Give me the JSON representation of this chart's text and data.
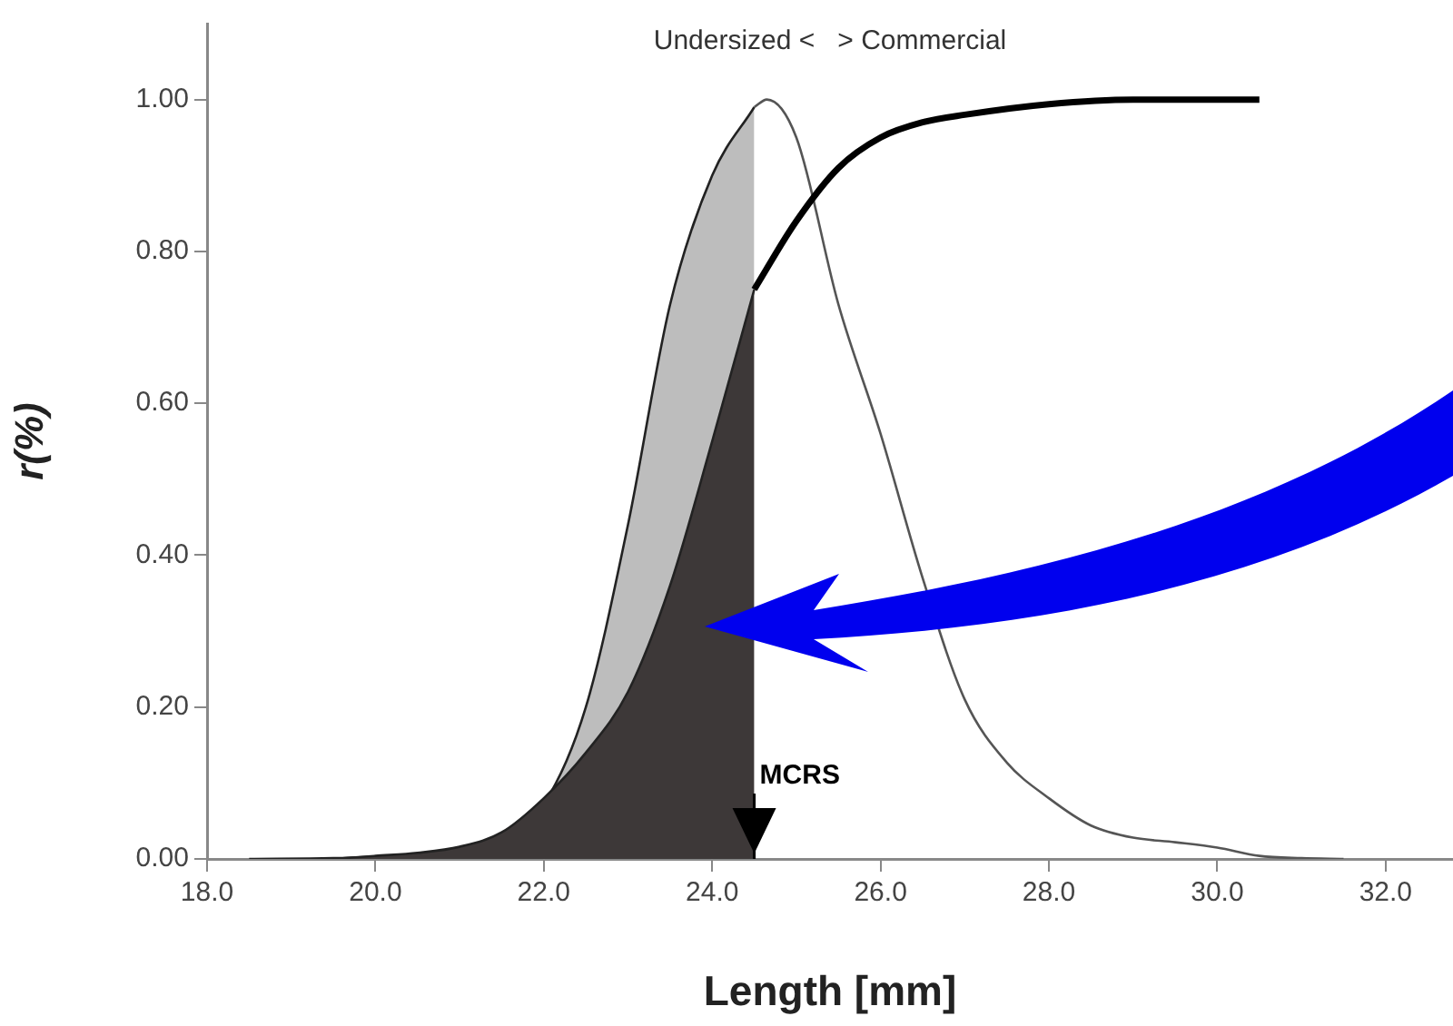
{
  "chart_data": {
    "type": "line",
    "xlabel": "Length [mm]",
    "ylabel": "r(%)",
    "xlim": [
      18,
      32.8
    ],
    "ylim": [
      0,
      1.1
    ],
    "xticks": [
      {
        "value": 18,
        "label": "18.0"
      },
      {
        "value": 20,
        "label": "20.0"
      },
      {
        "value": 22,
        "label": "22.0"
      },
      {
        "value": 24,
        "label": "24.0"
      },
      {
        "value": 26,
        "label": "26.0"
      },
      {
        "value": 28,
        "label": "28.0"
      },
      {
        "value": 30,
        "label": "30.0"
      },
      {
        "value": 32,
        "label": "32.0"
      }
    ],
    "yticks": [
      {
        "value": 0,
        "label": "0.00"
      },
      {
        "value": 0.2,
        "label": "0.20"
      },
      {
        "value": 0.4,
        "label": "0.40"
      },
      {
        "value": 0.6,
        "label": "0.60"
      },
      {
        "value": 0.8,
        "label": "0.80"
      },
      {
        "value": 1,
        "label": "1.00"
      }
    ],
    "grid": false,
    "legend": false,
    "series": [
      {
        "type": "area",
        "color": "#bdbdbd",
        "x": [
          18.5,
          19.5,
          20,
          20.5,
          21,
          21.5,
          22,
          22.5,
          23,
          23.5,
          24,
          24.5
        ],
        "values": [
          0,
          0.001,
          0.003,
          0.006,
          0.012,
          0.028,
          0.072,
          0.2,
          0.44,
          0.73,
          0.9,
          0.99
        ]
      },
      {
        "color": "#555555",
        "x": [
          24.5,
          24.65,
          25,
          25.5,
          26,
          26.5,
          27,
          27.5,
          28,
          28.5,
          29,
          29.5,
          30,
          30.5,
          31,
          31.5
        ],
        "values": [
          0.99,
          1.0,
          0.95,
          0.73,
          0.56,
          0.37,
          0.21,
          0.127,
          0.08,
          0.044,
          0.028,
          0.022,
          0.015,
          0.004,
          0.001,
          0
        ]
      },
      {
        "type": "area",
        "color": "#3d3838",
        "x": [
          19.5,
          20,
          20.5,
          21,
          21.5,
          22,
          22.5,
          23,
          23.5,
          24,
          24.5
        ],
        "values": [
          0,
          0.004,
          0.008,
          0.016,
          0.035,
          0.08,
          0.14,
          0.22,
          0.36,
          0.55,
          0.75
        ]
      },
      {
        "color": "#000000",
        "x": [
          24.5,
          25,
          25.5,
          26,
          26.5,
          27,
          28,
          29,
          30,
          30.5
        ],
        "values": [
          0.75,
          0.84,
          0.91,
          0.95,
          0.97,
          0.98,
          0.994,
          1.0,
          1.0,
          1.0
        ]
      }
    ],
    "ref_lines": [
      {
        "axis": "x",
        "value": 24.5,
        "label": "MCRS",
        "color": "#000000"
      }
    ],
    "annotations": [
      "Undersized <   > Commercial"
    ]
  }
}
